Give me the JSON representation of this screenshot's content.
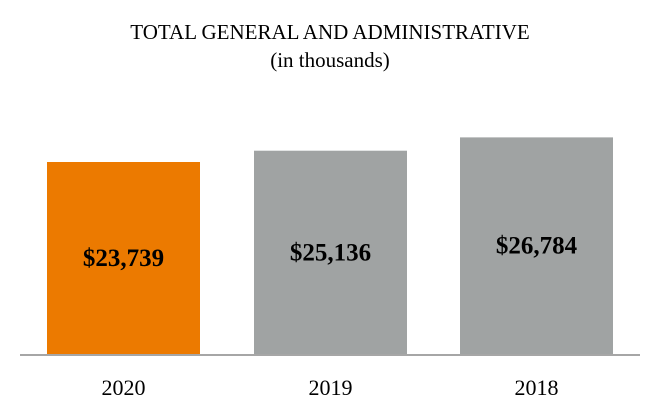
{
  "chart_data": {
    "type": "bar",
    "title": "TOTAL GENERAL AND ADMINISTRATIVE",
    "subtitle": "(in thousands)",
    "categories": [
      "2020",
      "2019",
      "2018"
    ],
    "values": [
      23739,
      25136,
      26784
    ],
    "data_labels": [
      "$23,739",
      "$25,136",
      "$26,784"
    ],
    "colors": [
      "#EC7A00",
      "#A0A3A3",
      "#A0A3A3"
    ],
    "axis_color": "#A6A6A6",
    "ylim": [
      0,
      26784
    ],
    "grid": false,
    "legend": "none"
  }
}
